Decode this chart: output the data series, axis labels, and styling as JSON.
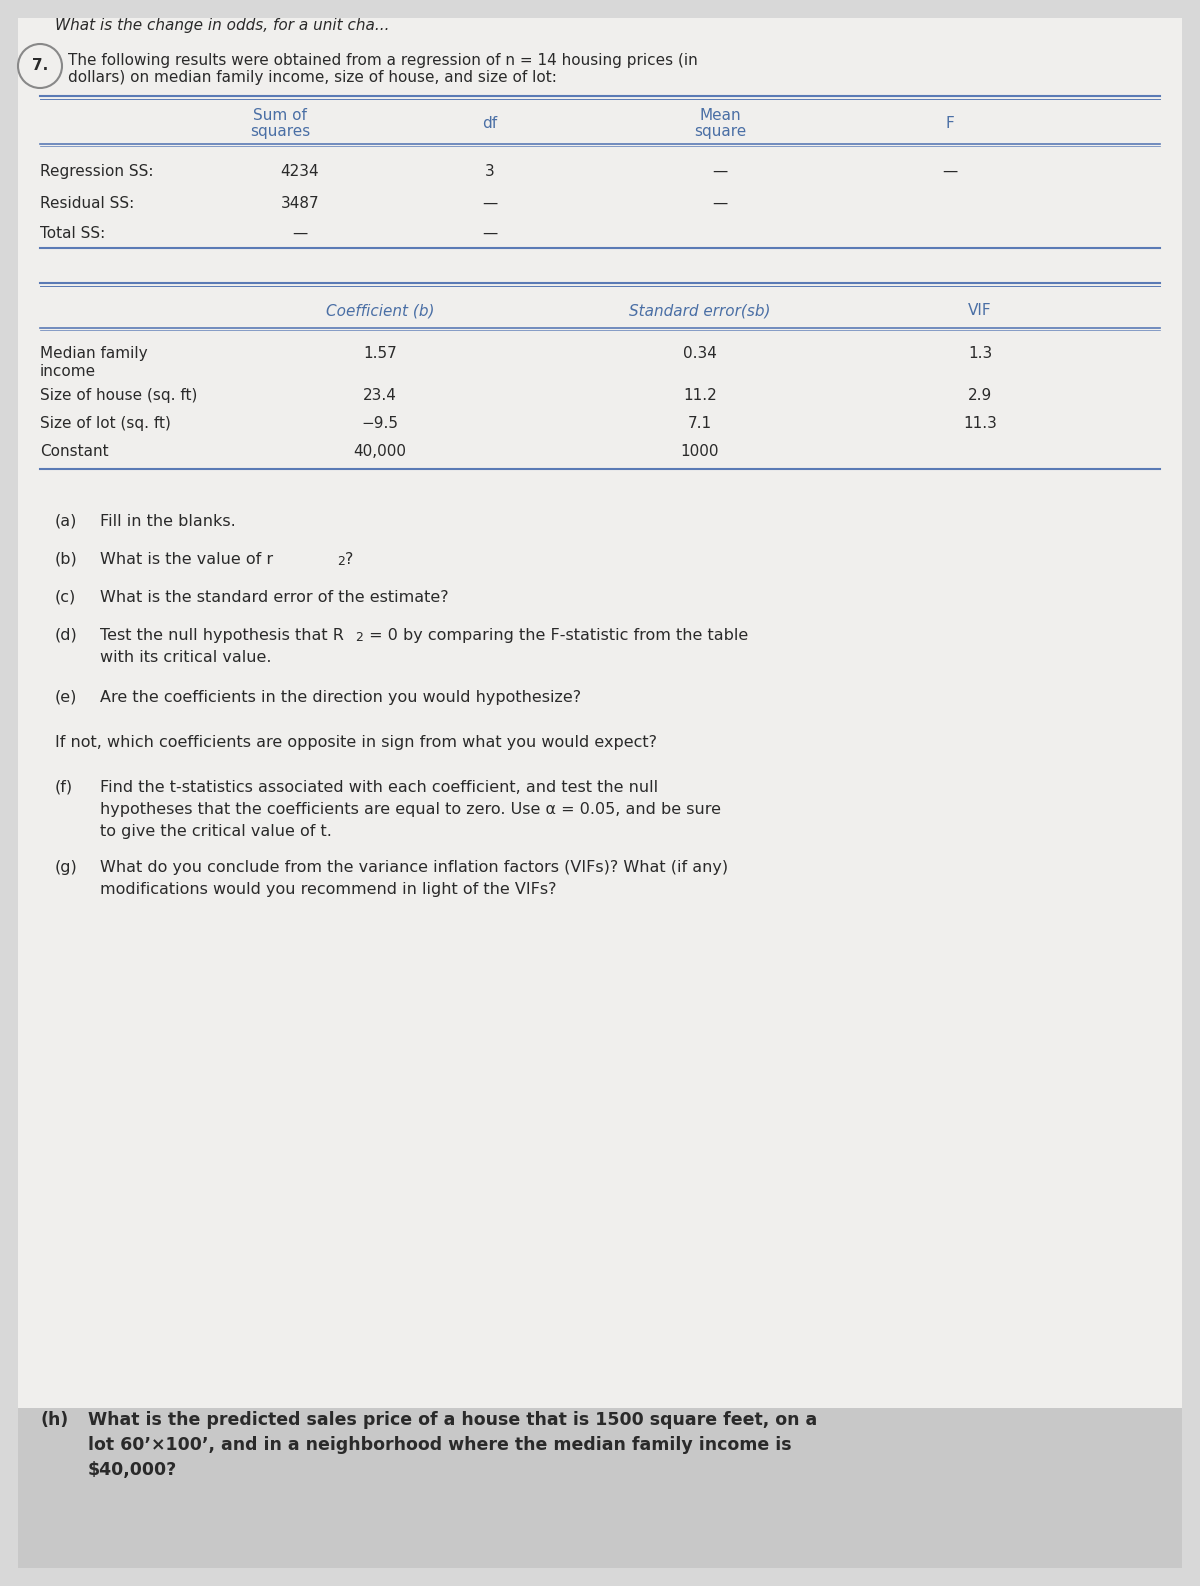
{
  "bg_color": "#d8d8d8",
  "page_bg": "#e8e8e8",
  "content_bg": "#f0efed",
  "header_text": "What is the change in odds, for a unit cha...",
  "question_number": "7.",
  "question_intro": "The following results were obtained from a regression of n = 14 housing prices (in\ndollars) on median family income, size of house, and size of lot:",
  "table1_headers": [
    "Sum of\nsquares",
    "df",
    "Mean\nsquare",
    "F"
  ],
  "table1_rows": [
    [
      "Regression SS:",
      "4234",
      "3",
      "—",
      "—"
    ],
    [
      "Residual SS:",
      "3487",
      "—",
      "—",
      ""
    ],
    [
      "Total SS:",
      "—",
      "—",
      "",
      ""
    ]
  ],
  "table2_headers": [
    "Coefficient (b)",
    "Standard error(sb)",
    "VIF"
  ],
  "table2_rows": [
    [
      "Median family\nincome",
      "1.57",
      "0.34",
      "1.3"
    ],
    [
      "Size of house (sq. ft)",
      "23.4",
      "11.2",
      "2.9"
    ],
    [
      "Size of lot (sq. ft)",
      "−9.5",
      "7.1",
      "11.3"
    ],
    [
      "Constant",
      "40,000",
      "1000",
      ""
    ]
  ],
  "parts": [
    "(a) Fill in the blanks.",
    "(b) What is the value of r²?",
    "(c) What is the standard error of the estimate?",
    "(d) Test the null hypothesis that R² = 0 by comparing the F-statistic from the table\n  with its critical value.",
    "(e) Are the coefficients in the direction you would hypothesize?\n\nIf not, which coefficients are opposite in sign from what you would expect?",
    "(f) Find the t-statistics associated with each coefficient, and test the null\n  hypotheses that the coefficients are equal to zero. Use α = 0.05, and be sure\n  to give the critical value of t.",
    "(g) What do you conclude from the variance inflation factors (VIFs)? What (if any)\n  modifications would you recommend in light of the VIFs?"
  ],
  "part_h": "(h) What is the predicted sales price of a house that is 1500 square feet, on a\n  lot 60’×100’, and in a neighborhood where the median family income is\n  $40,000?",
  "text_color": "#2a2a2a",
  "blue_color": "#4a6fa5",
  "line_color": "#5a7ab5",
  "header_line_color": "#6b8cbf"
}
